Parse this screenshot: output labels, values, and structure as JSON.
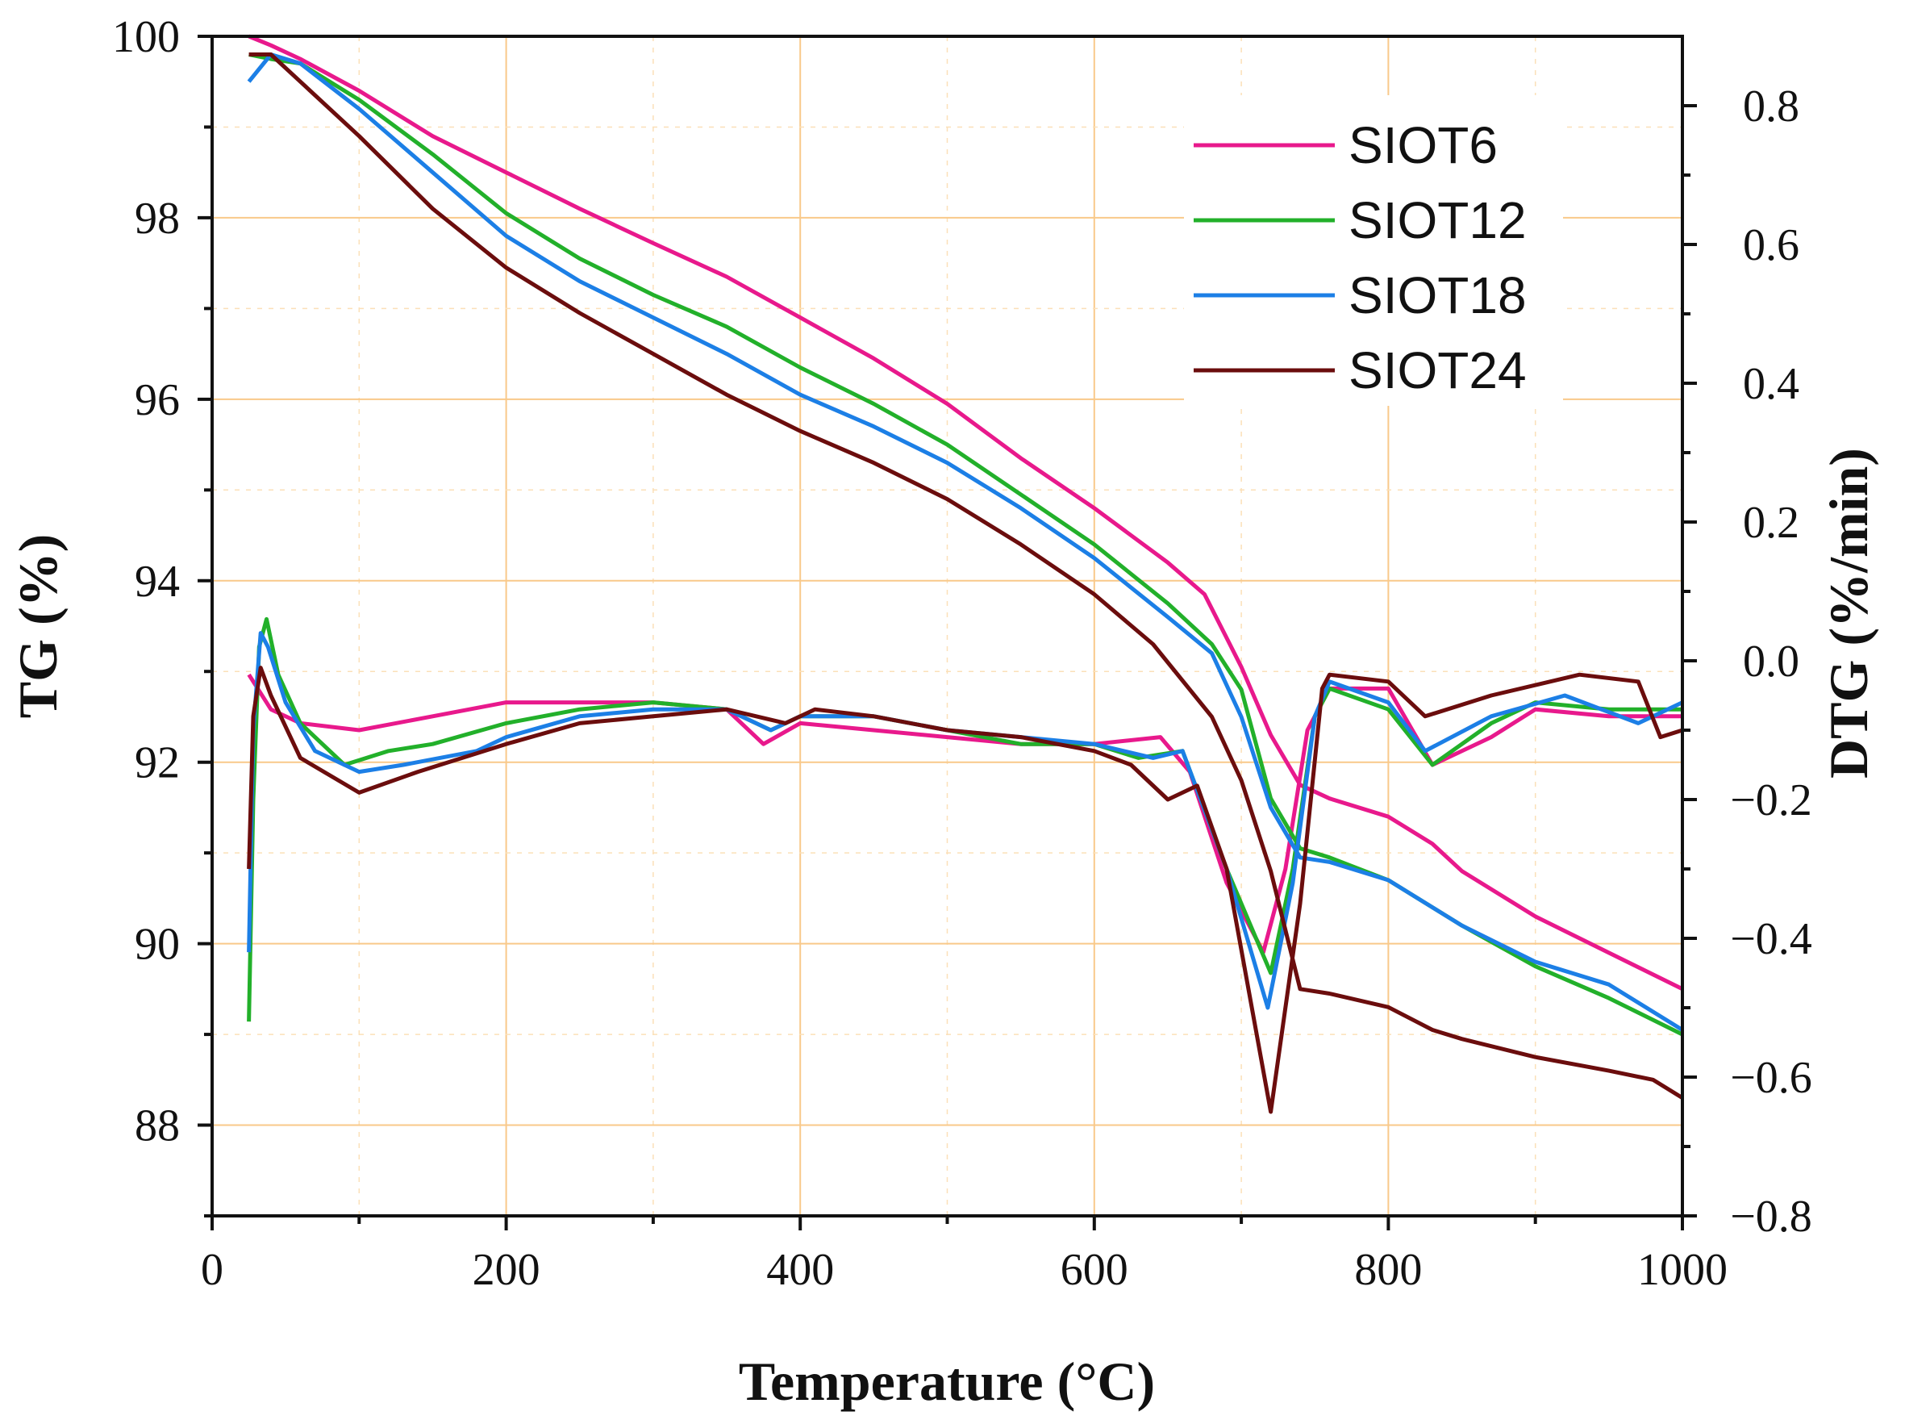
{
  "chart_data": {
    "type": "line",
    "title": "",
    "xlabel": "Temperature (°C)",
    "ylabel_left": "TG (%)",
    "ylabel_right": "DTG (%/min)",
    "xlim": [
      0,
      1000
    ],
    "ylim_left": [
      87,
      100
    ],
    "ylim_right": [
      -0.8,
      0.9
    ],
    "x_ticks": [
      0,
      200,
      400,
      600,
      800,
      1000
    ],
    "y_left_ticks": [
      88,
      90,
      92,
      94,
      96,
      98,
      100
    ],
    "y_right_ticks": [
      0.8,
      0.6,
      0.4,
      0.2,
      0.0,
      -0.2,
      -0.4,
      -0.6,
      -0.8
    ],
    "y_right_tick_labels": [
      "0.8",
      "0.6",
      "0.4",
      "0.2",
      "0.0",
      "−0.2",
      "−0.4",
      "−0.6",
      "−0.8"
    ],
    "grid": true,
    "legend_position": "top-right",
    "series": [
      {
        "name": "SIOT6",
        "color": "#e8198c",
        "tg": [
          [
            25,
            100
          ],
          [
            40,
            99.9
          ],
          [
            60,
            99.75
          ],
          [
            100,
            99.4
          ],
          [
            150,
            98.9
          ],
          [
            200,
            98.5
          ],
          [
            250,
            98.1
          ],
          [
            300,
            97.72
          ],
          [
            350,
            97.35
          ],
          [
            400,
            96.9
          ],
          [
            450,
            96.45
          ],
          [
            500,
            95.95
          ],
          [
            550,
            95.35
          ],
          [
            600,
            94.8
          ],
          [
            650,
            94.2
          ],
          [
            675,
            93.85
          ],
          [
            700,
            93.05
          ],
          [
            720,
            92.3
          ],
          [
            740,
            91.75
          ],
          [
            760,
            91.6
          ],
          [
            800,
            91.4
          ],
          [
            830,
            91.1
          ],
          [
            850,
            90.8
          ],
          [
            900,
            90.3
          ],
          [
            950,
            89.9
          ],
          [
            1000,
            89.5
          ]
        ],
        "dtg": [
          [
            25,
            -0.02
          ],
          [
            40,
            -0.07
          ],
          [
            60,
            -0.09
          ],
          [
            100,
            -0.1
          ],
          [
            150,
            -0.08
          ],
          [
            200,
            -0.06
          ],
          [
            250,
            -0.06
          ],
          [
            300,
            -0.06
          ],
          [
            350,
            -0.07
          ],
          [
            375,
            -0.12
          ],
          [
            400,
            -0.09
          ],
          [
            450,
            -0.1
          ],
          [
            500,
            -0.11
          ],
          [
            550,
            -0.12
          ],
          [
            600,
            -0.12
          ],
          [
            645,
            -0.11
          ],
          [
            665,
            -0.16
          ],
          [
            690,
            -0.32
          ],
          [
            715,
            -0.42
          ],
          [
            730,
            -0.3
          ],
          [
            745,
            -0.1
          ],
          [
            760,
            -0.04
          ],
          [
            800,
            -0.04
          ],
          [
            830,
            -0.15
          ],
          [
            870,
            -0.11
          ],
          [
            900,
            -0.07
          ],
          [
            950,
            -0.08
          ],
          [
            1000,
            -0.08
          ]
        ]
      },
      {
        "name": "SIOT12",
        "color": "#22b02a",
        "tg": [
          [
            25,
            99.8
          ],
          [
            40,
            99.75
          ],
          [
            60,
            99.7
          ],
          [
            100,
            99.3
          ],
          [
            150,
            98.7
          ],
          [
            200,
            98.05
          ],
          [
            250,
            97.55
          ],
          [
            300,
            97.15
          ],
          [
            350,
            96.8
          ],
          [
            400,
            96.35
          ],
          [
            450,
            95.95
          ],
          [
            500,
            95.5
          ],
          [
            550,
            94.95
          ],
          [
            600,
            94.4
          ],
          [
            650,
            93.75
          ],
          [
            680,
            93.3
          ],
          [
            700,
            92.8
          ],
          [
            720,
            91.6
          ],
          [
            740,
            91.05
          ],
          [
            760,
            90.95
          ],
          [
            800,
            90.7
          ],
          [
            850,
            90.2
          ],
          [
            900,
            89.75
          ],
          [
            950,
            89.4
          ],
          [
            1000,
            89.0
          ]
        ],
        "dtg": [
          [
            25,
            -0.52
          ],
          [
            28,
            -0.2
          ],
          [
            32,
            0.02
          ],
          [
            37,
            0.06
          ],
          [
            45,
            -0.02
          ],
          [
            60,
            -0.09
          ],
          [
            90,
            -0.15
          ],
          [
            120,
            -0.13
          ],
          [
            150,
            -0.12
          ],
          [
            200,
            -0.09
          ],
          [
            250,
            -0.07
          ],
          [
            300,
            -0.06
          ],
          [
            350,
            -0.07
          ],
          [
            380,
            -0.1
          ],
          [
            400,
            -0.08
          ],
          [
            450,
            -0.08
          ],
          [
            500,
            -0.1
          ],
          [
            550,
            -0.12
          ],
          [
            600,
            -0.12
          ],
          [
            630,
            -0.14
          ],
          [
            660,
            -0.13
          ],
          [
            690,
            -0.3
          ],
          [
            720,
            -0.45
          ],
          [
            735,
            -0.3
          ],
          [
            750,
            -0.08
          ],
          [
            760,
            -0.04
          ],
          [
            800,
            -0.07
          ],
          [
            830,
            -0.15
          ],
          [
            870,
            -0.09
          ],
          [
            900,
            -0.06
          ],
          [
            950,
            -0.07
          ],
          [
            1000,
            -0.07
          ]
        ]
      },
      {
        "name": "SIOT18",
        "color": "#1c7fe6",
        "tg": [
          [
            25,
            99.5
          ],
          [
            40,
            99.8
          ],
          [
            60,
            99.7
          ],
          [
            100,
            99.2
          ],
          [
            150,
            98.5
          ],
          [
            200,
            97.8
          ],
          [
            250,
            97.3
          ],
          [
            300,
            96.9
          ],
          [
            350,
            96.5
          ],
          [
            400,
            96.05
          ],
          [
            450,
            95.7
          ],
          [
            500,
            95.3
          ],
          [
            550,
            94.8
          ],
          [
            600,
            94.25
          ],
          [
            650,
            93.6
          ],
          [
            680,
            93.2
          ],
          [
            700,
            92.5
          ],
          [
            720,
            91.5
          ],
          [
            740,
            90.95
          ],
          [
            760,
            90.9
          ],
          [
            800,
            90.7
          ],
          [
            850,
            90.2
          ],
          [
            900,
            89.8
          ],
          [
            950,
            89.55
          ],
          [
            1000,
            89.05
          ]
        ],
        "dtg": [
          [
            25,
            -0.42
          ],
          [
            28,
            -0.1
          ],
          [
            33,
            0.04
          ],
          [
            38,
            0.02
          ],
          [
            50,
            -0.06
          ],
          [
            70,
            -0.13
          ],
          [
            100,
            -0.16
          ],
          [
            130,
            -0.15
          ],
          [
            180,
            -0.13
          ],
          [
            200,
            -0.11
          ],
          [
            250,
            -0.08
          ],
          [
            300,
            -0.07
          ],
          [
            350,
            -0.07
          ],
          [
            380,
            -0.1
          ],
          [
            400,
            -0.08
          ],
          [
            450,
            -0.08
          ],
          [
            500,
            -0.1
          ],
          [
            550,
            -0.11
          ],
          [
            600,
            -0.12
          ],
          [
            640,
            -0.14
          ],
          [
            660,
            -0.13
          ],
          [
            690,
            -0.3
          ],
          [
            718,
            -0.5
          ],
          [
            735,
            -0.32
          ],
          [
            750,
            -0.08
          ],
          [
            760,
            -0.03
          ],
          [
            800,
            -0.06
          ],
          [
            825,
            -0.13
          ],
          [
            870,
            -0.08
          ],
          [
            920,
            -0.05
          ],
          [
            970,
            -0.09
          ],
          [
            1000,
            -0.06
          ]
        ]
      },
      {
        "name": "SIOT24",
        "color": "#6b0d0d",
        "tg": [
          [
            25,
            99.8
          ],
          [
            40,
            99.8
          ],
          [
            60,
            99.5
          ],
          [
            100,
            98.9
          ],
          [
            150,
            98.1
          ],
          [
            200,
            97.45
          ],
          [
            250,
            96.95
          ],
          [
            300,
            96.5
          ],
          [
            350,
            96.05
          ],
          [
            400,
            95.65
          ],
          [
            450,
            95.3
          ],
          [
            500,
            94.9
          ],
          [
            550,
            94.4
          ],
          [
            600,
            93.85
          ],
          [
            640,
            93.3
          ],
          [
            680,
            92.5
          ],
          [
            700,
            91.8
          ],
          [
            720,
            90.8
          ],
          [
            740,
            89.5
          ],
          [
            760,
            89.45
          ],
          [
            800,
            89.3
          ],
          [
            830,
            89.05
          ],
          [
            850,
            88.95
          ],
          [
            900,
            88.75
          ],
          [
            950,
            88.6
          ],
          [
            980,
            88.5
          ],
          [
            1000,
            88.3
          ]
        ],
        "dtg": [
          [
            25,
            -0.3
          ],
          [
            28,
            -0.08
          ],
          [
            33,
            -0.01
          ],
          [
            40,
            -0.05
          ],
          [
            60,
            -0.14
          ],
          [
            100,
            -0.19
          ],
          [
            140,
            -0.16
          ],
          [
            200,
            -0.12
          ],
          [
            250,
            -0.09
          ],
          [
            300,
            -0.08
          ],
          [
            350,
            -0.07
          ],
          [
            390,
            -0.09
          ],
          [
            410,
            -0.07
          ],
          [
            450,
            -0.08
          ],
          [
            500,
            -0.1
          ],
          [
            550,
            -0.11
          ],
          [
            600,
            -0.13
          ],
          [
            625,
            -0.15
          ],
          [
            650,
            -0.2
          ],
          [
            670,
            -0.18
          ],
          [
            690,
            -0.3
          ],
          [
            720,
            -0.65
          ],
          [
            740,
            -0.35
          ],
          [
            755,
            -0.04
          ],
          [
            760,
            -0.02
          ],
          [
            800,
            -0.03
          ],
          [
            825,
            -0.08
          ],
          [
            870,
            -0.05
          ],
          [
            930,
            -0.02
          ],
          [
            970,
            -0.03
          ],
          [
            985,
            -0.11
          ],
          [
            1000,
            -0.1
          ]
        ]
      }
    ]
  }
}
